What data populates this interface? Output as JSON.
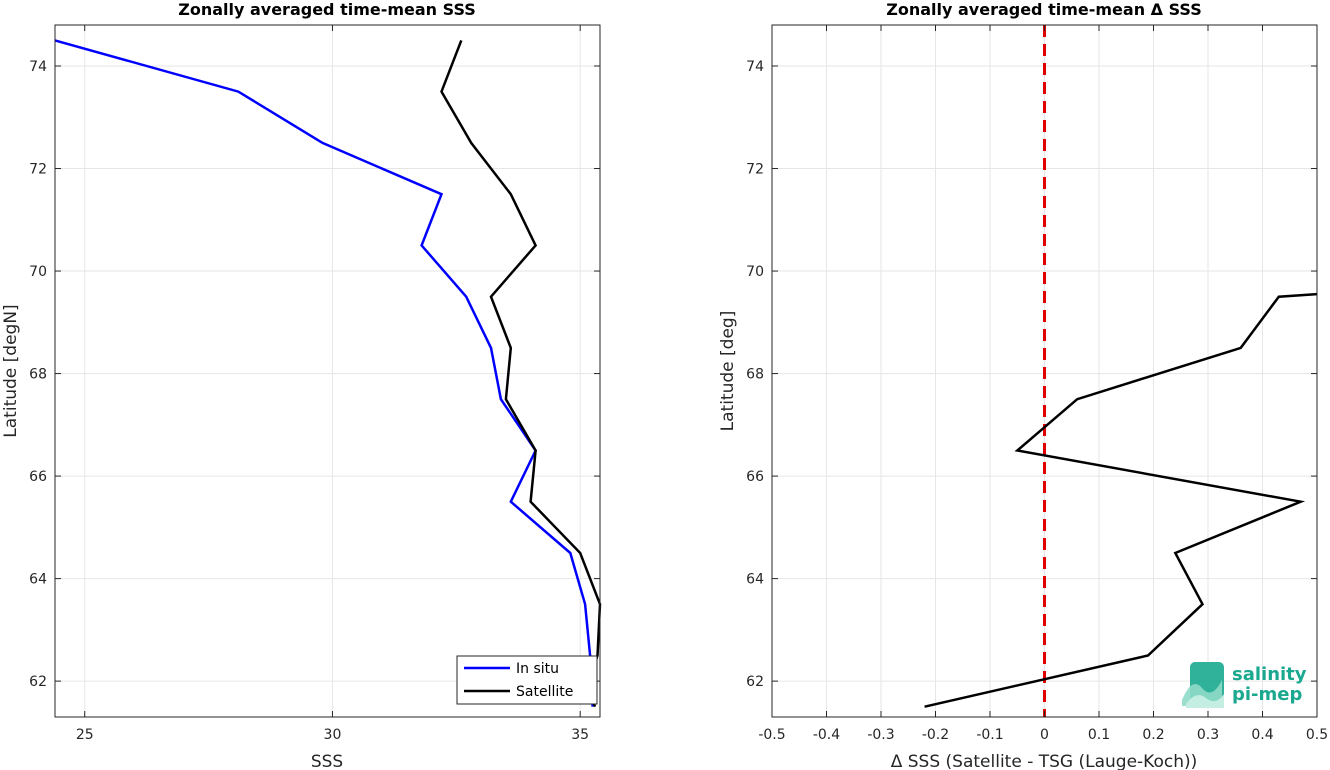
{
  "chart_data": [
    {
      "type": "line",
      "title": "Zonally averaged time-mean SSS",
      "xlabel": "SSS",
      "ylabel": "Latitude [degN]",
      "xlim": [
        24.4,
        35.4
      ],
      "ylim": [
        61.3,
        74.8
      ],
      "xticks": [
        "25",
        "30",
        "35"
      ],
      "yticks": [
        "62",
        "64",
        "66",
        "68",
        "70",
        "72",
        "74"
      ],
      "grid": true,
      "legend_position": "bottom-right",
      "series": [
        {
          "name": "In situ",
          "color": "#0000ff",
          "points": [
            [
              24.4,
              74.5
            ],
            [
              28.1,
              73.5
            ],
            [
              29.8,
              72.5
            ],
            [
              32.2,
              71.5
            ],
            [
              31.8,
              70.5
            ],
            [
              32.7,
              69.5
            ],
            [
              33.2,
              68.5
            ],
            [
              33.4,
              67.5
            ],
            [
              34.1,
              66.5
            ],
            [
              33.6,
              65.5
            ],
            [
              34.8,
              64.5
            ],
            [
              35.1,
              63.5
            ],
            [
              35.2,
              62.5
            ],
            [
              35.25,
              61.5
            ]
          ]
        },
        {
          "name": "Satellite",
          "color": "#000000",
          "points": [
            [
              32.6,
              74.5
            ],
            [
              32.2,
              73.5
            ],
            [
              32.8,
              72.5
            ],
            [
              33.6,
              71.5
            ],
            [
              34.1,
              70.5
            ],
            [
              33.2,
              69.5
            ],
            [
              33.6,
              68.5
            ],
            [
              33.5,
              67.5
            ],
            [
              34.1,
              66.5
            ],
            [
              34.0,
              65.5
            ],
            [
              35.0,
              64.5
            ],
            [
              35.4,
              63.5
            ],
            [
              35.35,
              62.5
            ],
            [
              35.15,
              61.9
            ],
            [
              35.3,
              61.5
            ]
          ]
        }
      ]
    },
    {
      "type": "line",
      "title": "Zonally averaged time-mean Δ SSS",
      "xlabel": "Δ SSS (Satellite - TSG (Lauge-Koch))",
      "ylabel": "Latitude [deg]",
      "xlim": [
        -0.5,
        0.5
      ],
      "ylim": [
        61.3,
        74.8
      ],
      "xticks": [
        "-0.5",
        "-0.4",
        "-0.3",
        "-0.2",
        "-0.1",
        "0",
        "0.1",
        "0.2",
        "0.3",
        "0.4",
        "0.5"
      ],
      "yticks": [
        "62",
        "64",
        "66",
        "68",
        "70",
        "72",
        "74"
      ],
      "grid": true,
      "reference_line": {
        "x": 0,
        "color": "#e00000",
        "style": "dashed"
      },
      "series": [
        {
          "color": "#000000",
          "points": [
            [
              0.5,
              69.55
            ],
            [
              0.43,
              69.5
            ],
            [
              0.36,
              68.5
            ],
            [
              0.06,
              67.5
            ],
            [
              -0.05,
              66.5
            ],
            [
              0.47,
              65.5
            ],
            [
              0.24,
              64.5
            ],
            [
              0.29,
              63.5
            ],
            [
              0.19,
              62.5
            ],
            [
              -0.22,
              61.5
            ]
          ]
        }
      ]
    }
  ],
  "logo": {
    "line1": "salinity",
    "line2": "pi-mep",
    "color": "#1aa88f"
  }
}
